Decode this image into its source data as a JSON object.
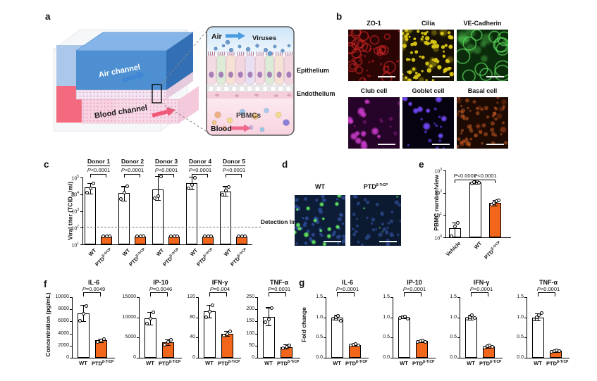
{
  "figure": {
    "panel_labels": {
      "a": "a",
      "b": "b",
      "c": "c",
      "d": "d",
      "e": "e",
      "f": "f",
      "g": "g"
    }
  },
  "colors": {
    "wt_bar": "#ffffff",
    "ptd_bar": "#f2661b",
    "axis": "#000000",
    "detection_line": "#777777",
    "chip_air_channel": "#4d8fd1",
    "chip_blood_channel": "#f2556b",
    "stains": {
      "zo1": "#c82323",
      "cilia": "#dac714",
      "ve_cadherin": "#5ad75a",
      "club": "#d23ed2",
      "goblet": "#7348f8",
      "basal": "#cd5f23"
    },
    "pbmc_marker_green": "#5fe65f",
    "nuclei_blue": "#0d1d38"
  },
  "panel_a": {
    "air_channel": "Air channel",
    "blood_channel": "Blood channel",
    "air": "Air",
    "viruses": "Viruses",
    "epithelium": "Epithelium",
    "endothelium": "Endothelium",
    "pbmcs": "PBMCs",
    "blood": "Blood"
  },
  "panel_b": {
    "tiles": [
      {
        "label": "ZO-1"
      },
      {
        "label": "Cilia"
      },
      {
        "label": "VE-Cadherin"
      },
      {
        "label": "Club cell"
      },
      {
        "label": "Goblet cell"
      },
      {
        "label": "Basal cell"
      }
    ]
  },
  "panel_d": {
    "images": [
      {
        "label_base": "WT",
        "label_sup": ""
      },
      {
        "label_base": "PTD",
        "label_sup": "β-TrCP"
      }
    ]
  },
  "panel_f": {
    "ylabel": "Concentration (pg/mL)"
  },
  "panel_g": {
    "ylabel": "Fold change"
  },
  "chart_data": [
    {
      "id": "c",
      "type": "bar",
      "scale": "log",
      "ylabel_parts": [
        {
          "t": "Viral titer (TCID"
        },
        {
          "t": "50",
          "sub": true
        },
        {
          "t": "/ml)"
        }
      ],
      "yexp": [
        1,
        2,
        3,
        4,
        5
      ],
      "detection_limit": {
        "value": 100,
        "label": "Detection limit"
      },
      "xlabels": [
        {
          "base": "WT"
        },
        {
          "base": "PTD",
          "sup": "β-TrCP"
        }
      ],
      "groups": [
        {
          "name": "Donor 1",
          "p": "P<0.0001",
          "wt": {
            "value": 25000,
            "err": [
              11000,
              48000
            ],
            "points": [
              12000,
              22000,
              44000
            ]
          },
          "ptd": {
            "value": 30,
            "points": [
              30,
              30,
              30
            ]
          }
        },
        {
          "name": "Donor 2",
          "p": "P<0.0001",
          "wt": {
            "value": 12000,
            "err": [
              4000,
              30000
            ],
            "points": [
              5000,
              12000,
              30000
            ]
          },
          "ptd": {
            "value": 30,
            "points": [
              30,
              30,
              30
            ]
          }
        },
        {
          "name": "Donor 3",
          "p": "P<0.0001",
          "wt": {
            "value": 20000,
            "err": [
              4500,
              125000
            ],
            "points": [
              6000,
              8000,
              115000
            ]
          },
          "ptd": {
            "value": 30,
            "points": [
              30,
              30,
              30
            ]
          }
        },
        {
          "name": "Donor 4",
          "p": "P<0.0001",
          "wt": {
            "value": 45000,
            "err": [
              20000,
              110000
            ],
            "points": [
              22000,
              35000,
              100000
            ]
          },
          "ptd": {
            "value": 30,
            "points": [
              30,
              30,
              30
            ]
          }
        },
        {
          "name": "Donor 5",
          "p": "P<0.0001",
          "wt": {
            "value": 15000,
            "err": [
              8000,
              30000
            ],
            "points": [
              9500,
              16000,
              28000
            ]
          },
          "ptd": {
            "value": 30,
            "points": [
              30,
              30,
              30
            ]
          }
        }
      ]
    },
    {
      "id": "e",
      "type": "bar",
      "scale": "log",
      "ylabel_parts": [
        {
          "t": "PBMC number/view"
        }
      ],
      "yexp": [
        0,
        1,
        2,
        3
      ],
      "bars": [
        {
          "label": {
            "base": "Vehicle"
          },
          "value": 2.6,
          "err": [
            1.0,
            4.5
          ],
          "points": [
            1.1,
            3.0,
            4.3
          ],
          "color": "white"
        },
        {
          "label": {
            "base": "WT"
          },
          "value": 300,
          "err": [
            250,
            345
          ],
          "points": [
            260,
            300,
            330,
            290
          ],
          "color": "white"
        },
        {
          "label": {
            "base": "PTD",
            "sup": "β-TrCP"
          },
          "value": 35,
          "err": [
            26,
            48
          ],
          "points": [
            30,
            34,
            42,
            45
          ],
          "color": "orange"
        }
      ],
      "brackets": [
        {
          "from": 0,
          "to": 1,
          "label": "P<0.0001"
        },
        {
          "from": 1,
          "to": 2,
          "label": "P<0.0001"
        }
      ]
    },
    {
      "id": "f-il6",
      "type": "bar",
      "scale": "linear",
      "title": "IL-6",
      "p": "P=0.0049",
      "ymax": 10000,
      "yticks": [
        "0",
        "2000",
        "4000",
        "6000",
        "8000",
        "10000"
      ],
      "bars": [
        {
          "label": {
            "base": "WT"
          },
          "value": 7300,
          "err": [
            6000,
            8700
          ],
          "points": [
            6100,
            7300,
            8600
          ],
          "color": "white"
        },
        {
          "label": {
            "base": "PTD",
            "sup": "β-TrCP"
          },
          "value": 2850,
          "err": [
            2550,
            3150
          ],
          "points": [
            2650,
            2850,
            3100
          ],
          "color": "orange"
        }
      ]
    },
    {
      "id": "f-ip10",
      "type": "bar",
      "scale": "linear",
      "title": "IP-10",
      "p": "P=0.0046",
      "ymax": 15000,
      "yticks": [
        "0",
        "5000",
        "10000",
        "15000"
      ],
      "bars": [
        {
          "label": {
            "base": "WT"
          },
          "value": 9700,
          "err": [
            8200,
            11300
          ],
          "points": [
            8400,
            9700,
            11200
          ],
          "color": "white"
        },
        {
          "label": {
            "base": "PTD",
            "sup": "β-TrCP"
          },
          "value": 3900,
          "err": [
            3200,
            4600
          ],
          "points": [
            3300,
            4000,
            4500
          ],
          "color": "orange"
        }
      ]
    },
    {
      "id": "f-ifng",
      "type": "bar",
      "scale": "linear",
      "title": "IFN-γ",
      "p": "P=0.004",
      "ymax": 120,
      "yticks": [
        "0",
        "40",
        "80",
        "120"
      ],
      "bars": [
        {
          "label": {
            "base": "WT"
          },
          "value": 92,
          "err": [
            79,
            105
          ],
          "points": [
            80,
            92,
            104
          ],
          "color": "white"
        },
        {
          "label": {
            "base": "PTD",
            "sup": "β-TrCP"
          },
          "value": 47,
          "err": [
            43,
            53
          ],
          "points": [
            44,
            47,
            52
          ],
          "color": "orange"
        }
      ]
    },
    {
      "id": "f-tnfa",
      "type": "bar",
      "scale": "linear",
      "title": "TNF-α",
      "p": "P=0.0031",
      "ymax": 250,
      "yticks": [
        "0",
        "50",
        "100",
        "150",
        "200",
        "250"
      ],
      "bars": [
        {
          "label": {
            "base": "WT"
          },
          "value": 170,
          "err": [
            135,
            208
          ],
          "points": [
            148,
            158,
            205
          ],
          "color": "white"
        },
        {
          "label": {
            "base": "PTD",
            "sup": "β-TrCP"
          },
          "value": 45,
          "err": [
            38,
            55
          ],
          "points": [
            40,
            45,
            52
          ],
          "color": "orange"
        }
      ]
    },
    {
      "id": "g-il6",
      "type": "bar",
      "scale": "linear",
      "title": "IL-6",
      "p": "P<0.0001",
      "ymax": 1.5,
      "yticks": [
        "0.0",
        "0.5",
        "1.0",
        "1.5"
      ],
      "bars": [
        {
          "label": {
            "base": "WT"
          },
          "value": 1.0,
          "err": [
            0.95,
            1.06
          ],
          "points": [
            0.97,
            1.0,
            1.03,
            0.92
          ],
          "color": "white"
        },
        {
          "label": {
            "base": "PTD",
            "sup": "β-TrCP"
          },
          "value": 0.32,
          "err": [
            0.29,
            0.35
          ],
          "points": [
            0.3,
            0.32,
            0.34,
            0.31
          ],
          "color": "orange"
        }
      ]
    },
    {
      "id": "g-ip10",
      "type": "bar",
      "scale": "linear",
      "title": "IP-10",
      "p": "P<0.0001",
      "ymax": 1.5,
      "yticks": [
        "0.0",
        "0.5",
        "1.0",
        "1.5"
      ],
      "bars": [
        {
          "label": {
            "base": "WT"
          },
          "value": 1.0,
          "err": [
            0.97,
            1.04
          ],
          "points": [
            0.98,
            1.0,
            1.02,
            0.97
          ],
          "color": "white"
        },
        {
          "label": {
            "base": "PTD",
            "sup": "β-TrCP"
          },
          "value": 0.41,
          "err": [
            0.38,
            0.44
          ],
          "points": [
            0.39,
            0.41,
            0.43,
            0.4
          ],
          "color": "orange"
        }
      ]
    },
    {
      "id": "g-ifng",
      "type": "bar",
      "scale": "linear",
      "title": "IFN-γ",
      "p": "P<0.0001",
      "ymax": 1.5,
      "yticks": [
        "0.0",
        "0.5",
        "1.0",
        "1.5"
      ],
      "bars": [
        {
          "label": {
            "base": "WT"
          },
          "value": 1.0,
          "err": [
            0.95,
            1.06
          ],
          "points": [
            0.97,
            1.0,
            1.05,
            0.98
          ],
          "color": "white"
        },
        {
          "label": {
            "base": "PTD",
            "sup": "β-TrCP"
          },
          "value": 0.28,
          "err": [
            0.25,
            0.31
          ],
          "points": [
            0.26,
            0.28,
            0.3,
            0.27
          ],
          "color": "orange"
        }
      ]
    },
    {
      "id": "g-tnfa",
      "type": "bar",
      "scale": "linear",
      "title": "TNF-α",
      "p": "P<0.0001",
      "ymax": 1.5,
      "yticks": [
        "0.0",
        "0.5",
        "1.0",
        "1.5"
      ],
      "bars": [
        {
          "label": {
            "base": "WT"
          },
          "value": 1.0,
          "err": [
            0.92,
            1.1
          ],
          "points": [
            0.95,
            1.0,
            1.05,
            1.1
          ],
          "color": "white"
        },
        {
          "label": {
            "base": "PTD",
            "sup": "β-TrCP"
          },
          "value": 0.17,
          "err": [
            0.14,
            0.2
          ],
          "points": [
            0.15,
            0.17,
            0.19,
            0.16
          ],
          "color": "orange"
        }
      ]
    }
  ]
}
